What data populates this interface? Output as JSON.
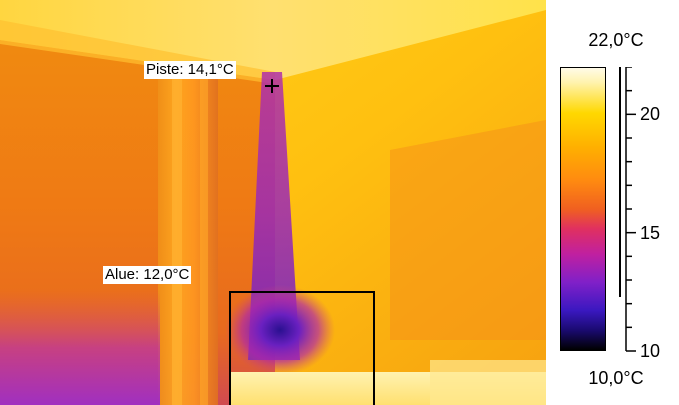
{
  "measurements": {
    "spot": {
      "label": "Piste: 14,1°C"
    },
    "area": {
      "label": "Alue: 12,0°C"
    }
  },
  "scale": {
    "max_label": "22,0°C",
    "min_label": "10,0°C",
    "min_value": 10,
    "max_value": 22,
    "ticks": [
      {
        "value": 20,
        "label": "20"
      },
      {
        "value": 15,
        "label": "15"
      },
      {
        "value": 10,
        "label": "10"
      }
    ],
    "palette": [
      "#fffbe8",
      "#ffd800",
      "#ff8a10",
      "#e03060",
      "#8020c8",
      "#1a0a70",
      "#000000"
    ]
  }
}
